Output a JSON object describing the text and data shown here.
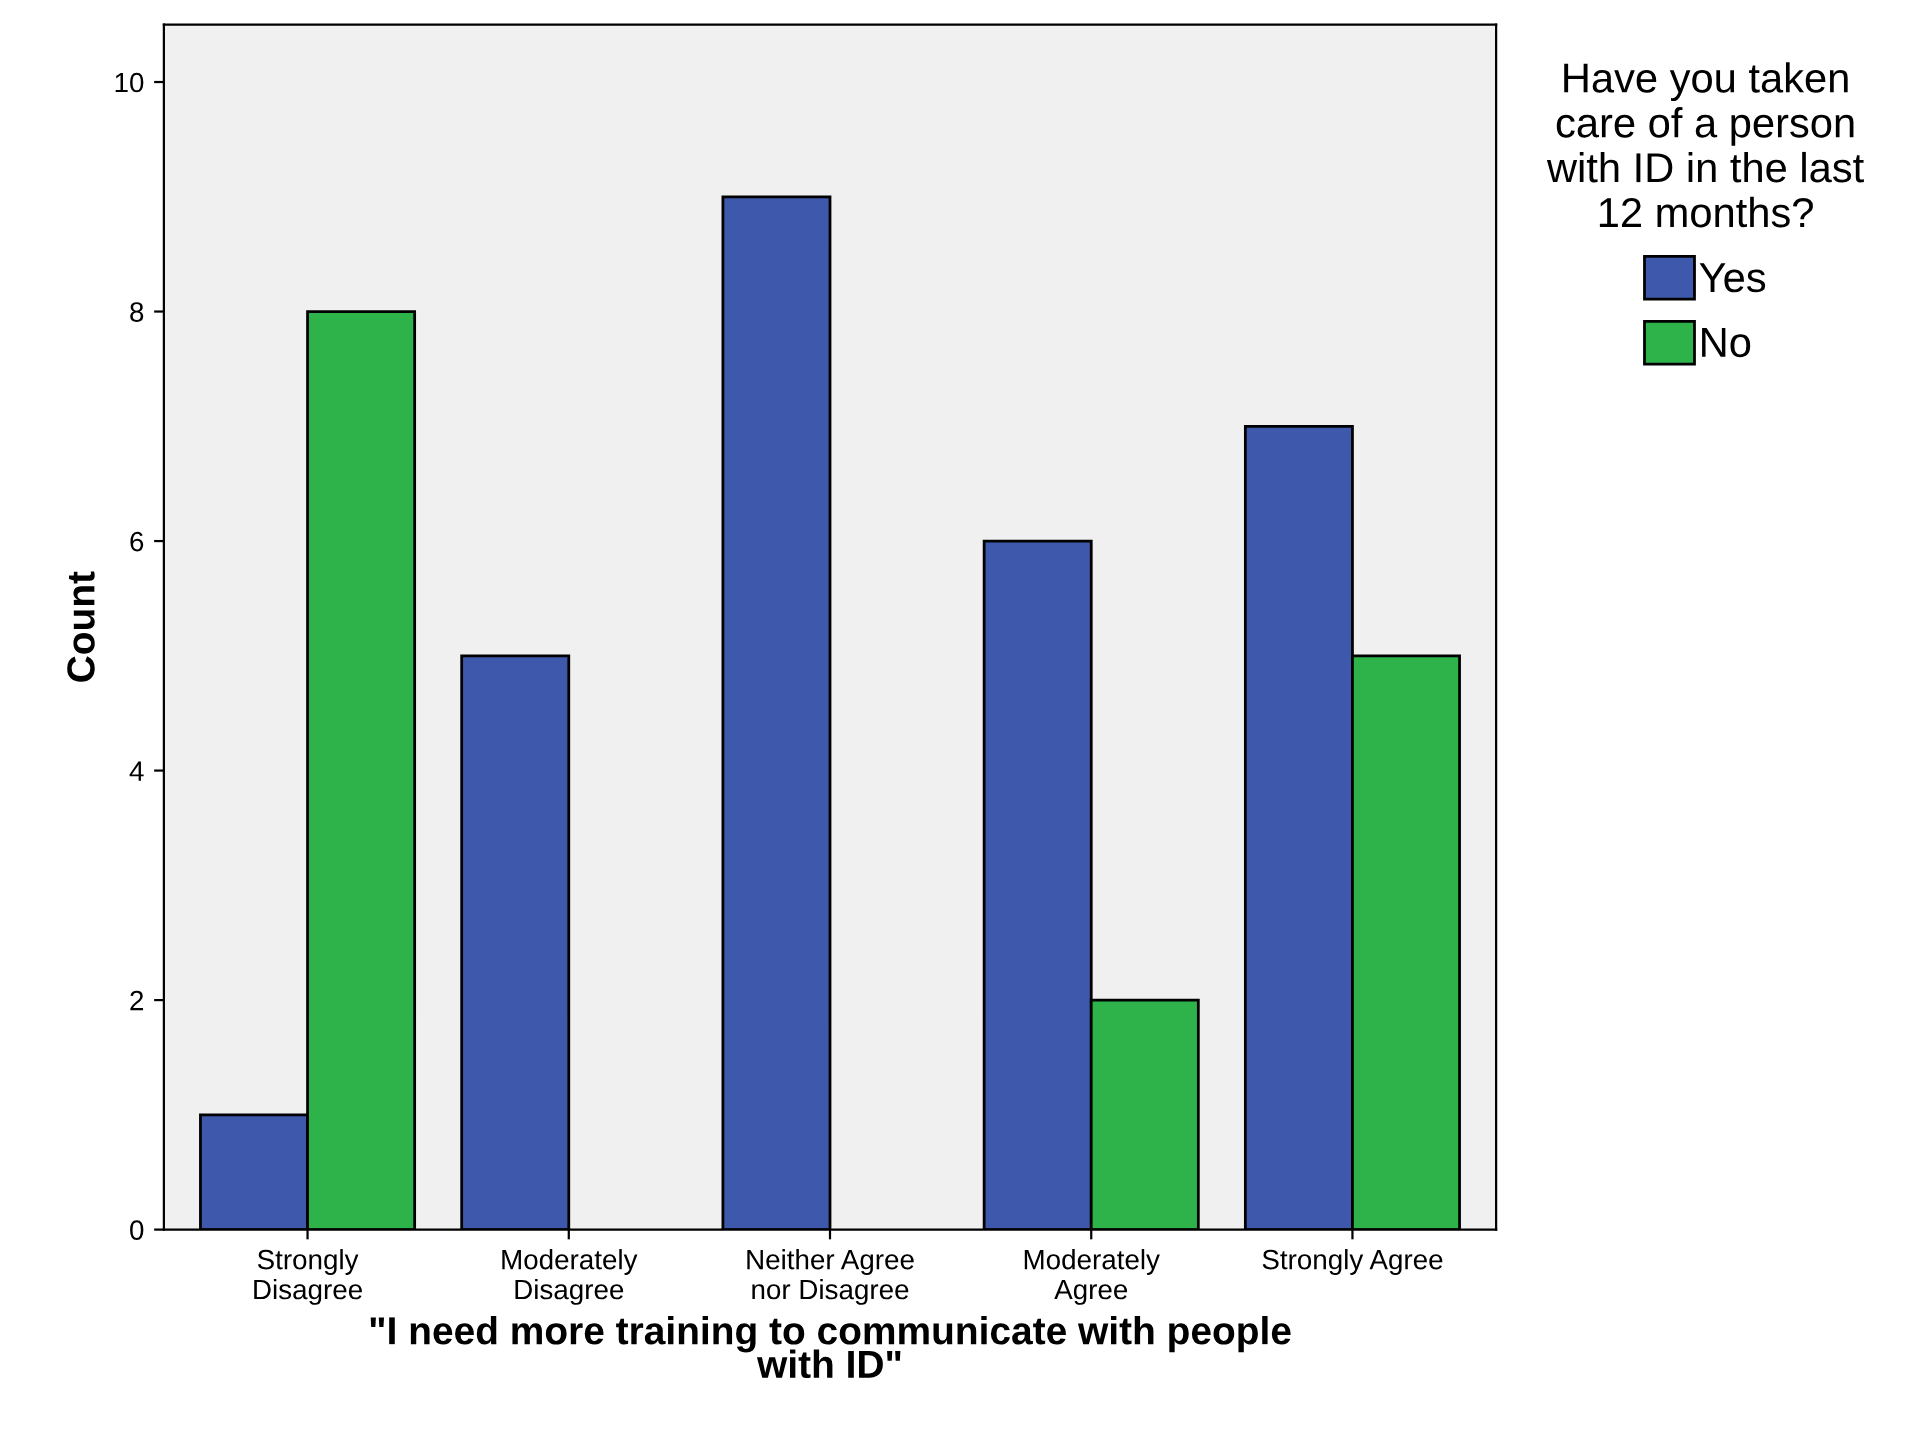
{
  "chart_data": {
    "type": "bar",
    "categories": [
      "Strongly\nDisagree",
      "Moderately\nDisagree",
      "Neither Agree\nnor Disagree",
      "Moderately\nAgree",
      "Strongly Agree"
    ],
    "series": [
      {
        "name": "Yes",
        "color": "#3e58ac",
        "values": [
          1,
          5,
          9,
          6,
          7
        ]
      },
      {
        "name": "No",
        "color": "#2db34a",
        "values": [
          8,
          null,
          null,
          2,
          5
        ]
      }
    ],
    "xlabel": "\"I need more training to communicate with people\nwith ID\"",
    "ylabel": "Count",
    "legend_title": "Have you taken\ncare of a person\nwith ID in the last\n12 months?",
    "legend": "right",
    "ylim": [
      0,
      10.5
    ],
    "yticks": [
      0,
      2,
      4,
      6,
      8,
      10
    ],
    "grid": false
  }
}
